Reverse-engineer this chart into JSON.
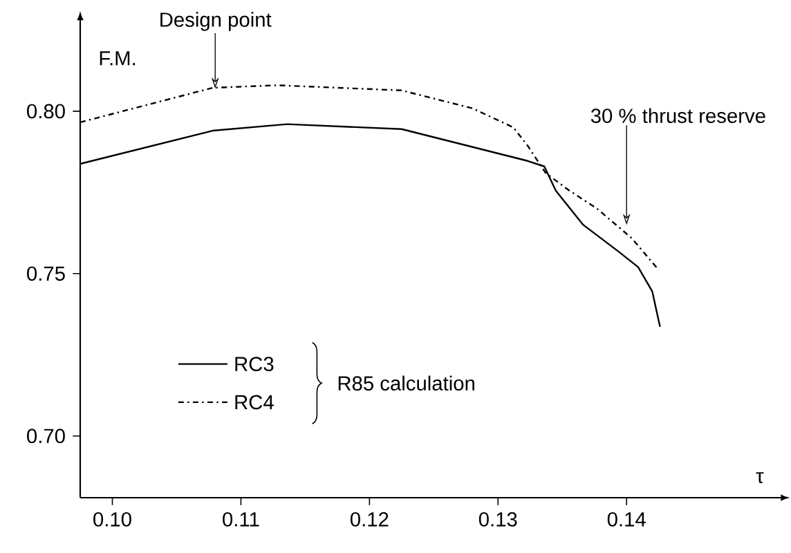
{
  "chart_data": {
    "type": "line",
    "xlabel": "τ",
    "ylabel": "F.M.",
    "legend_title": "R85 calculation",
    "legend": "bottom left",
    "xlim": [
      0.0975,
      0.152
    ],
    "ylim": [
      0.681,
      0.828
    ],
    "xticks": [
      {
        "value": 0.1,
        "label": "0.10"
      },
      0.11,
      0.12,
      0.13,
      0.14
    ],
    "yticks": [
      {
        "value": 0.7,
        "label": "0.70"
      },
      0.75,
      {
        "value": 0.8,
        "label": "0.80"
      }
    ],
    "series": [
      {
        "name": "RC3",
        "color": "#000000",
        "line_style": "solid",
        "x": [
          0.0975,
          0.1078,
          0.1136,
          0.1225,
          0.1323,
          0.1336,
          0.1345,
          0.1366,
          0.1393,
          0.1409,
          0.142,
          0.1426
        ],
        "values": [
          0.7838,
          0.794,
          0.796,
          0.7945,
          0.7847,
          0.783,
          0.7755,
          0.7651,
          0.757,
          0.752,
          0.7445,
          0.7336
        ]
      },
      {
        "name": "RC4",
        "color": "#000000",
        "line_style": "dashdotted",
        "x": [
          0.0975,
          0.1078,
          0.1128,
          0.1225,
          0.128,
          0.1312,
          0.1323,
          0.1337,
          0.1355,
          0.1377,
          0.1404,
          0.1425
        ],
        "values": [
          0.7966,
          0.8072,
          0.808,
          0.8064,
          0.8009,
          0.795,
          0.7894,
          0.781,
          0.7757,
          0.77,
          0.7609,
          0.7511
        ]
      }
    ],
    "annotations": [
      {
        "text": "Design point",
        "x": 0.108,
        "y": 0.807
      },
      {
        "text": "30 % thrust reserve",
        "x": 0.14,
        "y": 0.765
      }
    ]
  }
}
